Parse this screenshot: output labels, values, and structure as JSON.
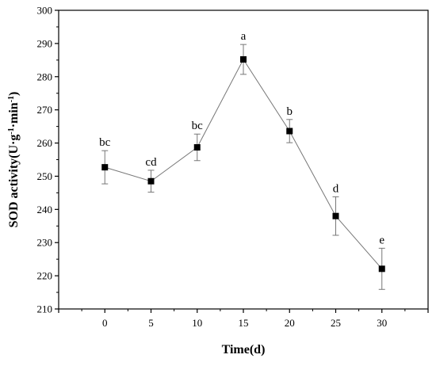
{
  "chart_data": {
    "type": "line",
    "xlabel": "Time(d)",
    "ylabel": {
      "parts": [
        {
          "text": "SOD activity(U·g",
          "sup": false
        },
        {
          "text": "-1",
          "sup": true
        },
        {
          "text": "·min",
          "sup": false
        },
        {
          "text": "-1",
          "sup": true
        },
        {
          "text": ")",
          "sup": false
        }
      ]
    },
    "xlim": [
      -5,
      35
    ],
    "ylim": [
      210,
      300
    ],
    "xticks": [
      "0",
      "5",
      "10",
      "15",
      "20",
      "25",
      "30"
    ],
    "yticks": [
      "210",
      "220",
      "230",
      "240",
      "250",
      "260",
      "270",
      "280",
      "290",
      "300"
    ],
    "grid": false,
    "legend": false,
    "marker": "square",
    "series": [
      {
        "x": [
          0,
          5,
          10,
          15,
          20,
          25,
          30
        ],
        "y": [
          252.7,
          248.5,
          258.7,
          285.2,
          263.6,
          238.0,
          222.1
        ],
        "error": [
          5.0,
          3.3,
          4.0,
          4.5,
          3.5,
          5.8,
          6.2
        ],
        "labels": [
          "bc",
          "cd",
          "bc",
          "a",
          "b",
          "d",
          "e"
        ]
      }
    ]
  }
}
